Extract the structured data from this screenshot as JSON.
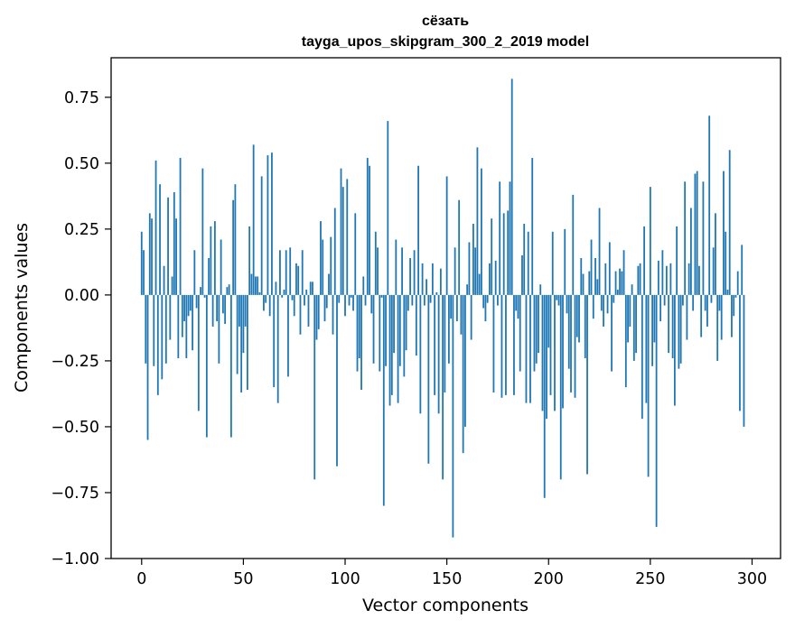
{
  "chart_data": {
    "type": "bar",
    "title": "сёзать",
    "subtitle": "tayga_upos_skipgram_300_2_2019 model",
    "xlabel": "Vector components",
    "ylabel": "Components values",
    "xlim": [
      -15,
      314
    ],
    "ylim": [
      -1.0,
      0.9
    ],
    "xticks": [
      0,
      50,
      100,
      150,
      200,
      250,
      300
    ],
    "yticks": [
      -1.0,
      -0.75,
      -0.5,
      -0.25,
      0.0,
      0.25,
      0.5,
      0.75
    ],
    "xtick_labels": [
      "0",
      "50",
      "100",
      "150",
      "200",
      "250",
      "300"
    ],
    "ytick_labels": [
      "−1.00",
      "−0.75",
      "−0.50",
      "−0.25",
      "0.00",
      "0.25",
      "0.50",
      "0.75"
    ],
    "grid": false,
    "bar_color": "#1f77b4",
    "values": [
      0.24,
      0.17,
      -0.26,
      -0.55,
      0.31,
      0.29,
      -0.27,
      0.51,
      -0.38,
      0.42,
      -0.32,
      0.11,
      -0.26,
      0.37,
      -0.17,
      0.07,
      0.39,
      0.29,
      -0.24,
      0.52,
      -0.16,
      -0.1,
      -0.24,
      -0.08,
      -0.06,
      -0.21,
      0.17,
      -0.05,
      -0.44,
      0.03,
      0.48,
      -0.01,
      -0.54,
      0.14,
      0.26,
      -0.12,
      0.28,
      -0.1,
      -0.26,
      0.21,
      -0.07,
      -0.11,
      0.03,
      0.04,
      -0.54,
      0.36,
      0.42,
      -0.3,
      -0.12,
      -0.37,
      -0.22,
      -0.12,
      -0.36,
      0.26,
      0.08,
      0.57,
      0.07,
      0.07,
      0.01,
      0.45,
      -0.06,
      -0.03,
      0.53,
      -0.08,
      0.54,
      -0.35,
      0.05,
      -0.41,
      0.17,
      -0.01,
      0.02,
      0.17,
      -0.31,
      0.18,
      -0.02,
      -0.08,
      0.12,
      0.11,
      -0.15,
      0.17,
      -0.04,
      0.02,
      -0.12,
      0.05,
      0.05,
      -0.7,
      -0.17,
      -0.13,
      0.28,
      0.21,
      -0.1,
      -0.05,
      0.08,
      0.22,
      -0.15,
      0.33,
      -0.65,
      -0.03,
      0.48,
      0.41,
      -0.08,
      0.44,
      -0.04,
      -0.01,
      -0.06,
      0.31,
      -0.29,
      -0.24,
      -0.36,
      0.07,
      -0.04,
      0.52,
      0.49,
      -0.07,
      -0.26,
      0.24,
      0.18,
      -0.29,
      -0.01,
      -0.8,
      -0.27,
      0.66,
      -0.42,
      -0.38,
      -0.22,
      0.21,
      -0.41,
      -0.27,
      0.18,
      -0.31,
      -0.21,
      -0.06,
      0.14,
      -0.04,
      0.17,
      -0.23,
      0.49,
      -0.45,
      0.12,
      -0.04,
      0.06,
      -0.64,
      -0.03,
      0.12,
      -0.38,
      0.01,
      -0.45,
      0.1,
      -0.7,
      -0.37,
      0.45,
      -0.26,
      -0.09,
      -0.92,
      0.18,
      -0.1,
      0.36,
      -0.15,
      -0.6,
      -0.5,
      0.04,
      0.2,
      -0.17,
      0.27,
      0.18,
      0.56,
      0.08,
      0.48,
      -0.05,
      -0.1,
      -0.03,
      0.12,
      0.29,
      -0.37,
      0.13,
      -0.04,
      0.43,
      -0.39,
      0.31,
      -0.38,
      0.32,
      0.43,
      0.82,
      -0.38,
      -0.06,
      -0.09,
      -0.29,
      0.15,
      0.27,
      -0.41,
      0.24,
      -0.41,
      0.52,
      -0.29,
      -0.26,
      -0.22,
      0.04,
      -0.44,
      -0.77,
      -0.47,
      -0.2,
      -0.38,
      0.24,
      -0.44,
      -0.02,
      -0.04,
      -0.7,
      -0.43,
      0.25,
      -0.07,
      -0.28,
      -0.37,
      0.38,
      -0.39,
      -0.16,
      -0.18,
      0.14,
      0.08,
      -0.24,
      -0.68,
      0.09,
      0.21,
      -0.09,
      0.14,
      0.06,
      0.33,
      -0.06,
      -0.12,
      0.12,
      -0.07,
      0.2,
      -0.29,
      -0.03,
      0.09,
      0.02,
      0.1,
      0.09,
      0.17,
      -0.35,
      -0.18,
      -0.12,
      0.04,
      -0.25,
      -0.22,
      0.11,
      0.12,
      -0.47,
      0.26,
      -0.41,
      -0.69,
      0.41,
      -0.27,
      -0.18,
      -0.88,
      0.13,
      -0.1,
      0.17,
      -0.04,
      0.11,
      -0.22,
      0.12,
      -0.24,
      -0.42,
      0.26,
      -0.28,
      -0.26,
      -0.04,
      0.43,
      -0.17,
      0.12,
      0.33,
      -0.06,
      0.46,
      0.47,
      0.11,
      -0.16,
      0.43,
      -0.06,
      -0.12,
      0.68,
      -0.03,
      0.18,
      0.31,
      -0.25,
      -0.06,
      -0.17,
      0.47,
      0.24,
      0.02,
      0.55,
      -0.16,
      -0.08,
      -0.01,
      0.09,
      -0.44,
      0.19,
      -0.5
    ]
  }
}
